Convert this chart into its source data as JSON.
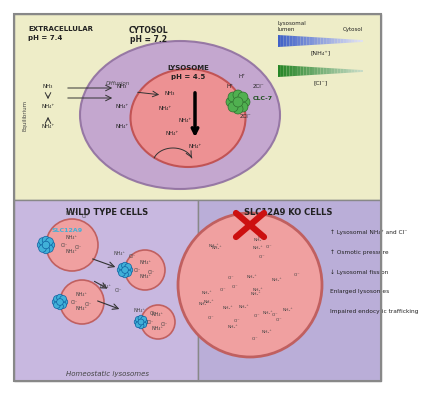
{
  "bg_top": "#eeedc8",
  "bg_bottom_left": "#c8b8e0",
  "bg_bottom_right": "#baaed8",
  "cytosol_color": "#c0a0d0",
  "cytosol_edge": "#9070a0",
  "lysosome_color": "#f09090",
  "lysosome_edge": "#c05050",
  "clc7_color": "#50b050",
  "slc12a9_color": "#40b0d8",
  "lyso_small_color": "#f0a0a0",
  "lyso_small_edge": "#c06060",
  "red_x_color": "#cc1010",
  "border_color": "#888888",
  "divider_color": "#888888",
  "text_dark": "#222222",
  "text_mid": "#444444",
  "arrow_color": "#333333",
  "label_extracellular": "EXTRACELLULAR",
  "label_ph74": "pH = 7.4",
  "label_cytosol": "CYTOSOL",
  "label_ph72": "pH = 7.2",
  "label_lysosome": "LYSOSOME",
  "label_ph45": "pH = 4.5",
  "label_equilibrium": "Equilibrium",
  "label_diffusion": "Diffusion",
  "label_clc7": "CLC-7",
  "label_lumen": "Lysosomal\nlumen",
  "label_cytosol_right": "Cytosol",
  "label_nh4_bracket": "[NH₄⁺]",
  "label_cl_bracket": "[Cl⁻]",
  "label_wt": "WILD TYPE CELLS",
  "label_ko": "SLC12A9 KO CELLS",
  "label_slc12a9": "SLC12A9",
  "label_homeostatic": "Homeostatic lysosomes",
  "effect1": "↑ Lysosomal NH₄⁺ and Cl⁻",
  "effect2": "↑ Osmotic pressure",
  "effect3": "↓ Lysosomal fission",
  "effect4": "Enlarged lysosomes",
  "effect5": "Impaired endocytic trafficking",
  "nh3": "NH₃",
  "nh4": "NH₄⁺",
  "hp": "H⁺",
  "cl2": "2Cl⁻",
  "cl": "Cl⁻"
}
